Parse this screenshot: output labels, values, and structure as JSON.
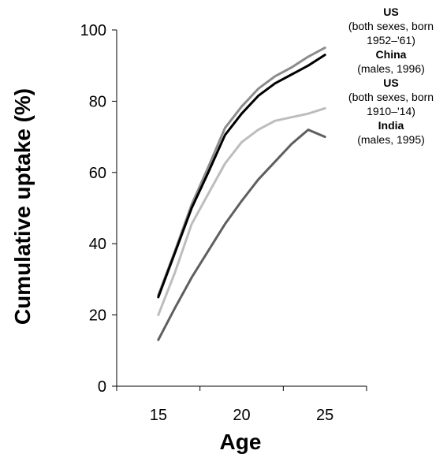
{
  "chart_data": {
    "type": "line",
    "xlabel": "Age",
    "ylabel": "Cumulative uptake (%)",
    "xlim": [
      12.5,
      27.5
    ],
    "ylim": [
      0,
      100
    ],
    "x_ticks": [
      15,
      20,
      25
    ],
    "y_ticks": [
      0,
      20,
      40,
      60,
      80,
      100
    ],
    "grid": false,
    "legend_placement": "top-right",
    "series": [
      {
        "name": "US",
        "description_lines": [
          "(both sexes, born",
          "1952–'61)"
        ],
        "color": "#8c8c8c",
        "x": [
          15,
          16,
          17,
          18,
          19,
          20,
          21,
          22,
          23,
          24,
          25
        ],
        "values": [
          25.5,
          38,
          51,
          61.5,
          72.5,
          78.5,
          83.5,
          87,
          89.5,
          92.5,
          95
        ]
      },
      {
        "name": "China",
        "description_lines": [
          "(males, 1996)"
        ],
        "color": "#000000",
        "x": [
          15,
          16,
          17,
          18,
          19,
          20,
          21,
          22,
          23,
          24,
          25
        ],
        "values": [
          25,
          37.5,
          50,
          60,
          70.5,
          76.5,
          81.5,
          85,
          87.5,
          90,
          93
        ]
      },
      {
        "name": "US",
        "description_lines": [
          "(both sexes, born",
          "1910–'14)"
        ],
        "color": "#bdbdbd",
        "x": [
          15,
          16,
          17,
          18,
          19,
          20,
          21,
          22,
          23,
          24,
          25
        ],
        "values": [
          20,
          32,
          45.5,
          54,
          62.5,
          68.5,
          72,
          74.5,
          75.5,
          76.5,
          78
        ]
      },
      {
        "name": "India",
        "description_lines": [
          "(males, 1995)"
        ],
        "color": "#5f5f5f",
        "x": [
          15,
          16,
          17,
          18,
          19,
          20,
          21,
          22,
          23,
          24,
          25
        ],
        "values": [
          13,
          22,
          30.5,
          38,
          45.5,
          52,
          58,
          63,
          68,
          72,
          70
        ]
      }
    ]
  }
}
